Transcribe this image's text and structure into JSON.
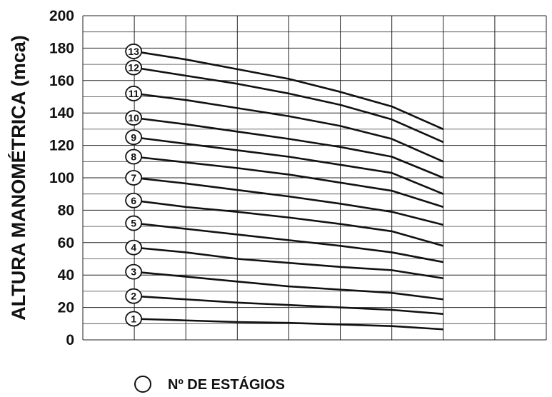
{
  "chart_data": {
    "type": "line",
    "title": "",
    "xlabel": "",
    "ylabel": "ALTURA MANOMÉTRICA (mca)",
    "ylim": [
      0,
      200
    ],
    "yticks": [
      0,
      20,
      40,
      60,
      80,
      100,
      120,
      140,
      160,
      180,
      200
    ],
    "xlim": [
      0,
      9
    ],
    "x_gridlines": 8,
    "grid": true,
    "legend": {
      "symbol": "circle",
      "label": "Nº DE ESTÁGIOS",
      "placement": "bottom-center"
    },
    "x": [
      1,
      2,
      3,
      4,
      5,
      6,
      7
    ],
    "series": [
      {
        "name": "1",
        "values": [
          13,
          12,
          11,
          10.5,
          9.5,
          8.5,
          6.5
        ]
      },
      {
        "name": "2",
        "values": [
          27,
          25,
          23,
          21.5,
          20,
          18.5,
          16
        ]
      },
      {
        "name": "3",
        "values": [
          42,
          39,
          36,
          33,
          31,
          29,
          25
        ]
      },
      {
        "name": "4",
        "values": [
          57,
          54,
          50,
          47.5,
          45,
          43,
          38
        ]
      },
      {
        "name": "5",
        "values": [
          72,
          68.5,
          65,
          61.5,
          58,
          54,
          48
        ]
      },
      {
        "name": "6",
        "values": [
          86,
          82,
          79,
          75.5,
          71.5,
          67,
          58
        ]
      },
      {
        "name": "7",
        "values": [
          100,
          96.5,
          92.5,
          88.5,
          84,
          79,
          71
        ]
      },
      {
        "name": "8",
        "values": [
          113,
          109.5,
          106,
          102,
          97,
          92,
          82
        ]
      },
      {
        "name": "9",
        "values": [
          125,
          121,
          117,
          113,
          108,
          103,
          90
        ]
      },
      {
        "name": "10",
        "values": [
          137,
          133,
          128.5,
          124,
          119,
          113,
          100
        ]
      },
      {
        "name": "11",
        "values": [
          152,
          148,
          143,
          138,
          132,
          124,
          110
        ]
      },
      {
        "name": "12",
        "values": [
          168,
          163,
          158,
          152,
          145,
          136,
          122
        ]
      },
      {
        "name": "13",
        "values": [
          178,
          173,
          167,
          161,
          153,
          144,
          130
        ]
      }
    ]
  }
}
